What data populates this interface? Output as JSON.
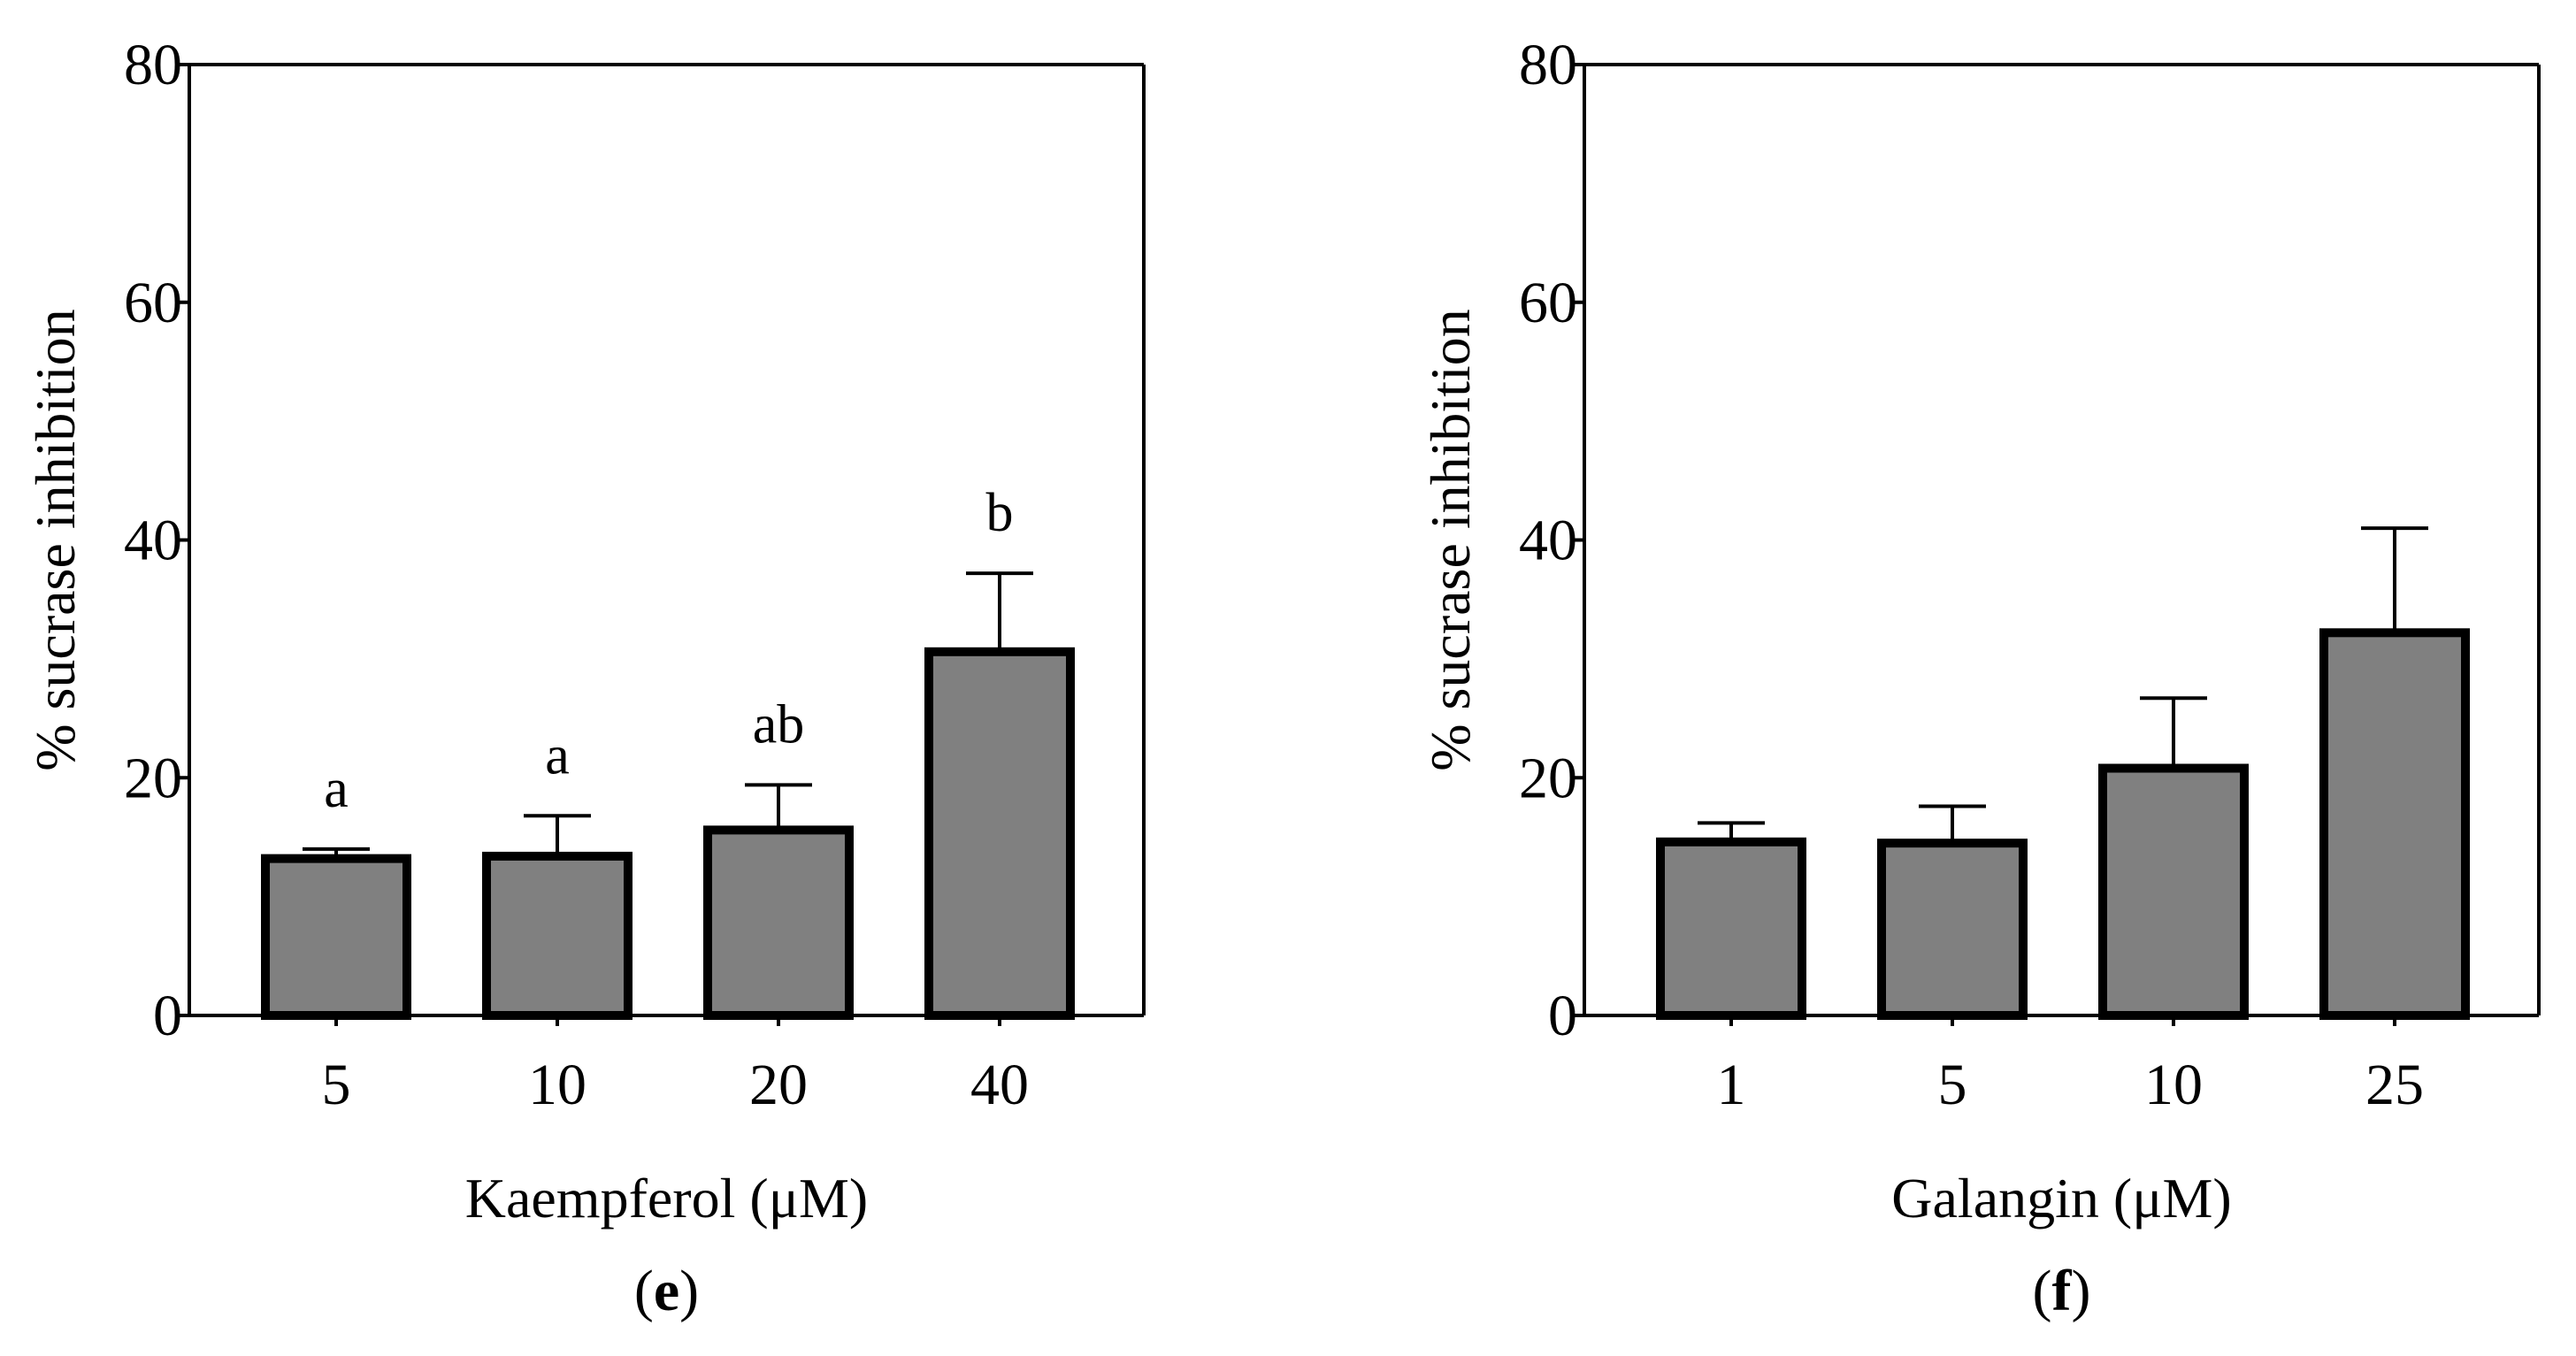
{
  "chart_data": [
    {
      "type": "bar",
      "panel_label": "e",
      "categories": [
        "5",
        "10",
        "20",
        "40"
      ],
      "values": [
        13.2,
        13.4,
        15.6,
        30.6
      ],
      "errors": [
        0.8,
        3.4,
        3.8,
        6.6
      ],
      "annotations": [
        "a",
        "a",
        "ab",
        "b"
      ],
      "xlabel": "Kaempferol (μM)",
      "ylabel": "% sucrase inhibition",
      "ylim": [
        0,
        80
      ],
      "yticks": [
        0,
        20,
        40,
        60,
        80
      ],
      "bar_color": "#808080",
      "edge_color": "#000000"
    },
    {
      "type": "bar",
      "panel_label": "f",
      "categories": [
        "1",
        "5",
        "10",
        "25"
      ],
      "values": [
        14.6,
        14.5,
        20.8,
        32.2
      ],
      "errors": [
        1.6,
        3.1,
        5.9,
        8.8
      ],
      "annotations": [],
      "xlabel": "Galangin (μM)",
      "ylabel": "% sucrase inhibition",
      "ylim": [
        0,
        80
      ],
      "yticks": [
        0,
        20,
        40,
        60,
        80
      ],
      "bar_color": "#808080",
      "edge_color": "#000000"
    }
  ]
}
